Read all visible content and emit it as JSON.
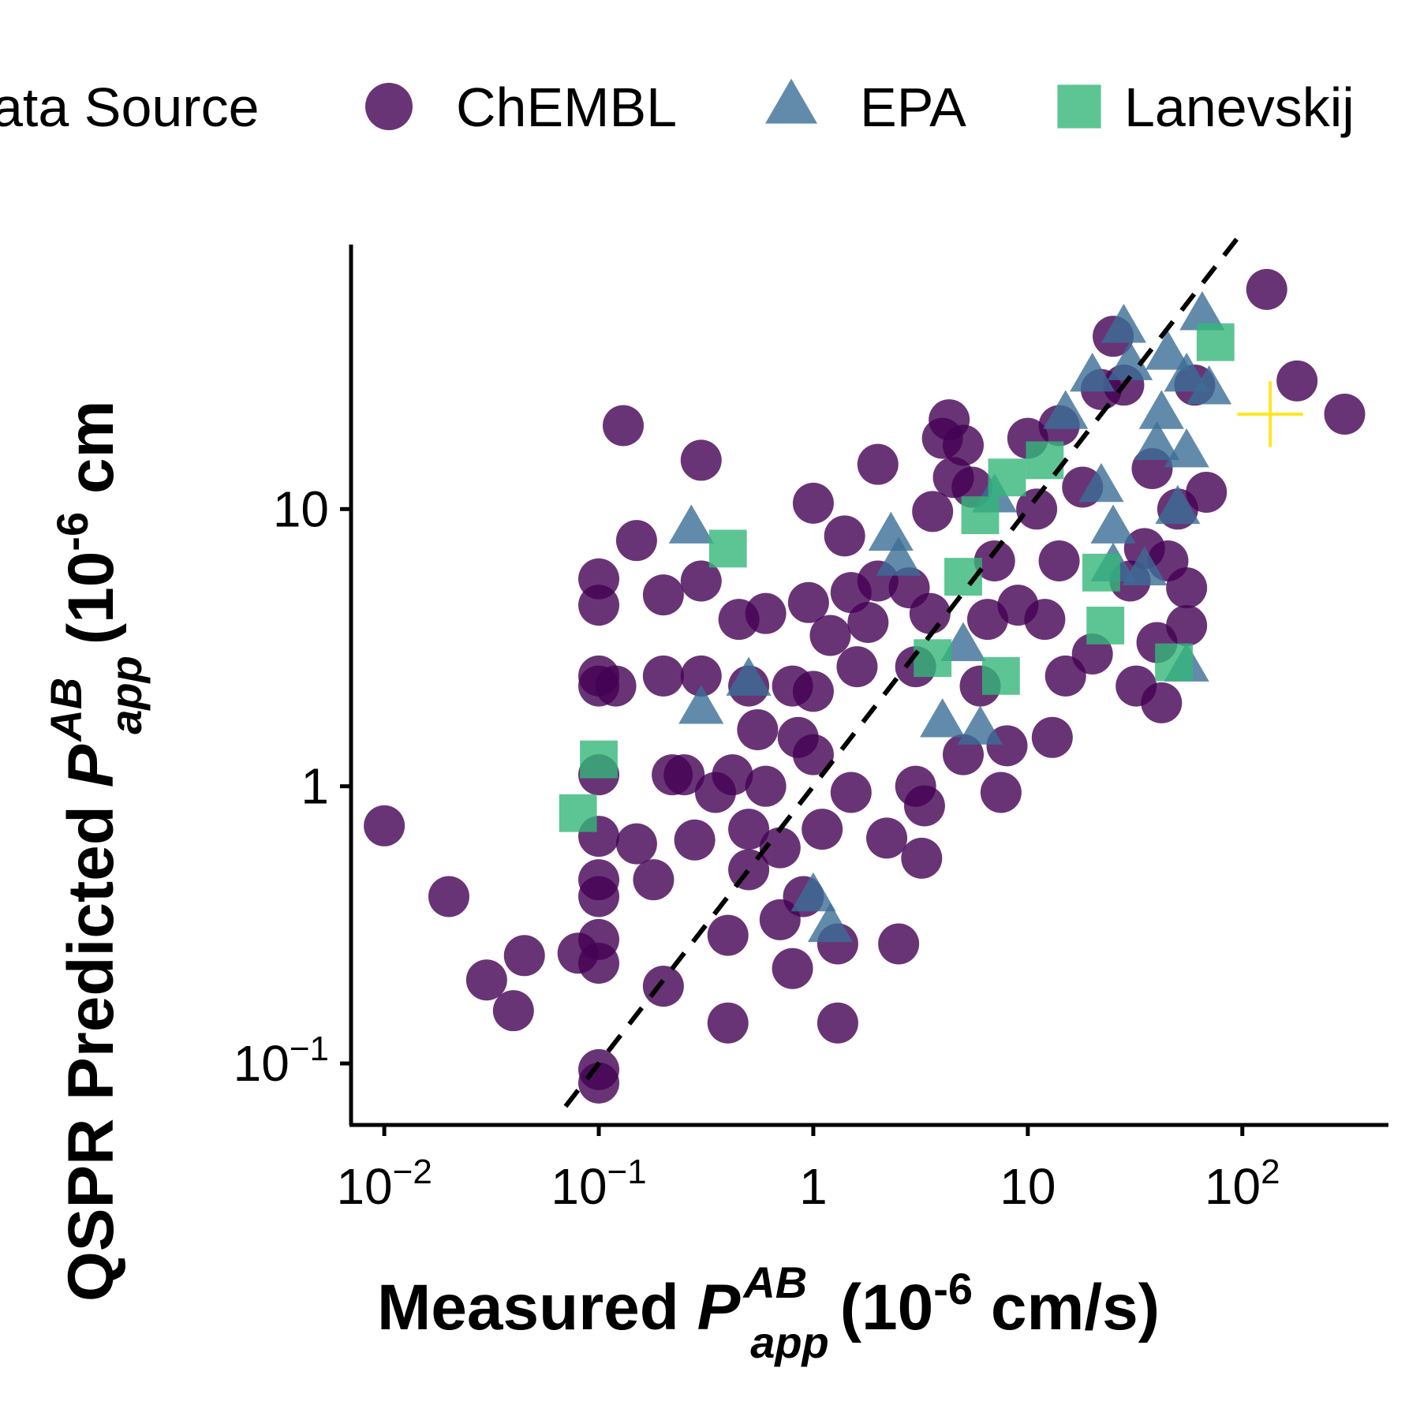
{
  "chart_data": {
    "type": "scatter",
    "title": "",
    "xlabel": "Measured P_app^AB (10^-6 cm/s)",
    "ylabel": "QSPR Predicted P_app^AB (10^-6 cm",
    "x_scale": "log",
    "y_scale": "log",
    "xlim": [
      0.007,
      480
    ],
    "ylim": [
      0.06,
      90
    ],
    "grid": false,
    "legend": {
      "position": "top",
      "title": "ata Source",
      "entries": [
        "ChEMBL",
        "EPA",
        "Lanevskij"
      ]
    },
    "reference_line": {
      "style": "dashed",
      "slope": 1,
      "x_range": [
        0.07,
        100
      ]
    },
    "x_ticks": [
      {
        "value": 0.01,
        "label": "10",
        "sup": "−2"
      },
      {
        "value": 0.1,
        "label": "10",
        "sup": "−1"
      },
      {
        "value": 1,
        "label": "1",
        "sup": ""
      },
      {
        "value": 10,
        "label": "10",
        "sup": ""
      },
      {
        "value": 100,
        "label": "10",
        "sup": "2"
      }
    ],
    "y_ticks": [
      {
        "value": 0.1,
        "label": "10",
        "sup": "−1"
      },
      {
        "value": 1,
        "label": "1",
        "sup": ""
      },
      {
        "value": 10,
        "label": "10",
        "sup": ""
      }
    ],
    "series": [
      {
        "name": "ChEMBL",
        "marker": "circle",
        "color": "#440154",
        "points": [
          [
            0.01,
            0.72
          ],
          [
            0.02,
            0.4
          ],
          [
            0.03,
            0.2
          ],
          [
            0.04,
            0.155
          ],
          [
            0.045,
            0.245
          ],
          [
            0.08,
            0.25
          ],
          [
            0.1,
            0.095
          ],
          [
            0.1,
            0.085
          ],
          [
            0.1,
            0.23
          ],
          [
            0.1,
            0.28
          ],
          [
            0.1,
            0.4
          ],
          [
            0.1,
            0.46
          ],
          [
            0.1,
            0.66
          ],
          [
            0.1,
            1.1
          ],
          [
            0.1,
            2.3
          ],
          [
            0.1,
            2.5
          ],
          [
            0.1,
            4.5
          ],
          [
            0.1,
            5.6
          ],
          [
            0.12,
            2.3
          ],
          [
            0.13,
            20
          ],
          [
            0.15,
            7.7
          ],
          [
            0.15,
            0.62
          ],
          [
            0.18,
            0.46
          ],
          [
            0.2,
            0.19
          ],
          [
            0.2,
            2.5
          ],
          [
            0.2,
            4.9
          ],
          [
            0.22,
            1.1
          ],
          [
            0.25,
            1.1
          ],
          [
            0.28,
            0.64
          ],
          [
            0.3,
            2.5
          ],
          [
            0.3,
            5.5
          ],
          [
            0.3,
            15
          ],
          [
            0.35,
            0.95
          ],
          [
            0.4,
            0.14
          ],
          [
            0.4,
            0.29
          ],
          [
            0.42,
            1.1
          ],
          [
            0.45,
            4
          ],
          [
            0.5,
            0.5
          ],
          [
            0.5,
            0.7
          ],
          [
            0.5,
            2.3
          ],
          [
            0.55,
            1.6
          ],
          [
            0.6,
            4.2
          ],
          [
            0.6,
            1
          ],
          [
            0.7,
            0.33
          ],
          [
            0.7,
            0.6
          ],
          [
            0.8,
            0.22
          ],
          [
            0.8,
            2.3
          ],
          [
            0.85,
            1.5
          ],
          [
            0.9,
            0.4
          ],
          [
            0.95,
            4.6
          ],
          [
            1,
            10.5
          ],
          [
            1,
            1.3
          ],
          [
            1,
            2.2
          ],
          [
            1.1,
            0.7
          ],
          [
            1.2,
            3.5
          ],
          [
            1.3,
            0.14
          ],
          [
            1.3,
            0.27
          ],
          [
            1.4,
            8
          ],
          [
            1.5,
            0.95
          ],
          [
            1.5,
            5
          ],
          [
            1.6,
            2.7
          ],
          [
            1.8,
            3.9
          ],
          [
            2,
            5.5
          ],
          [
            2,
            14.5
          ],
          [
            2.2,
            0.65
          ],
          [
            2.5,
            0.27
          ],
          [
            2.8,
            5.2
          ],
          [
            3,
            1
          ],
          [
            3,
            2.7
          ],
          [
            3.2,
            0.55
          ],
          [
            3.3,
            0.85
          ],
          [
            3.5,
            4.2
          ],
          [
            3.6,
            9.8
          ],
          [
            4,
            18
          ],
          [
            4.3,
            21
          ],
          [
            4.5,
            13
          ],
          [
            5,
            1.3
          ],
          [
            5,
            17
          ],
          [
            5.5,
            12
          ],
          [
            6,
            2.3
          ],
          [
            6.5,
            4
          ],
          [
            7,
            6.5
          ],
          [
            7.5,
            0.95
          ],
          [
            8,
            1.4
          ],
          [
            9,
            4.5
          ],
          [
            10,
            18
          ],
          [
            11,
            10
          ],
          [
            12,
            4
          ],
          [
            13,
            1.5
          ],
          [
            14,
            20
          ],
          [
            14,
            6.5
          ],
          [
            15,
            2.5
          ],
          [
            18,
            12
          ],
          [
            20,
            3
          ],
          [
            22,
            27
          ],
          [
            25,
            42
          ],
          [
            28,
            28
          ],
          [
            30,
            5.5
          ],
          [
            32,
            2.3
          ],
          [
            35,
            7.2
          ],
          [
            38,
            14
          ],
          [
            40,
            3.3
          ],
          [
            42,
            2
          ],
          [
            45,
            6.5
          ],
          [
            50,
            10
          ],
          [
            55,
            3.8
          ],
          [
            55,
            5.2
          ],
          [
            60,
            28
          ],
          [
            68,
            11.5
          ],
          [
            130,
            62
          ],
          [
            180,
            29
          ],
          [
            300,
            22
          ]
        ]
      },
      {
        "name": "EPA",
        "marker": "triangle",
        "color": "#3B6E96",
        "points": [
          [
            0.27,
            8.5
          ],
          [
            0.3,
            1.9
          ],
          [
            0.5,
            2.4
          ],
          [
            1,
            0.4
          ],
          [
            1.2,
            0.31
          ],
          [
            2.3,
            8
          ],
          [
            2.5,
            6.5
          ],
          [
            4,
            1.7
          ],
          [
            5,
            3.2
          ],
          [
            6,
            1.6
          ],
          [
            7,
            11
          ],
          [
            15,
            22
          ],
          [
            20,
            30
          ],
          [
            22,
            12
          ],
          [
            25,
            8.5
          ],
          [
            25,
            6.2
          ],
          [
            28,
            45
          ],
          [
            30,
            33
          ],
          [
            35,
            6
          ],
          [
            40,
            17
          ],
          [
            42,
            22
          ],
          [
            45,
            36
          ],
          [
            50,
            10
          ],
          [
            55,
            16
          ],
          [
            55,
            30
          ],
          [
            55,
            2.7
          ],
          [
            65,
            50
          ],
          [
            70,
            27
          ]
        ]
      },
      {
        "name": "Lanevskij",
        "marker": "square",
        "color": "#35B779",
        "points": [
          [
            0.08,
            0.8
          ],
          [
            0.1,
            1.25
          ],
          [
            0.4,
            7.2
          ],
          [
            3.6,
            2.9
          ],
          [
            5,
            5.7
          ],
          [
            6,
            9.5
          ],
          [
            7.5,
            2.5
          ],
          [
            8,
            13
          ],
          [
            12,
            15
          ],
          [
            22,
            5.9
          ],
          [
            23,
            3.8
          ],
          [
            48,
            2.8
          ],
          [
            75,
            40
          ]
        ]
      },
      {
        "name": "",
        "marker": "plus",
        "color": "#FDE725",
        "points": [
          [
            135,
            22
          ]
        ]
      }
    ]
  }
}
